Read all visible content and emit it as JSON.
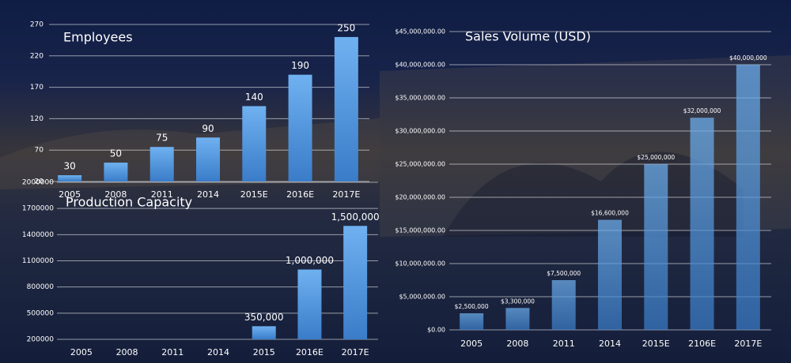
{
  "chart_data": [
    {
      "type": "bar",
      "title": "Employees",
      "categories": [
        "2005",
        "2008",
        "2011",
        "2014",
        "2015E",
        "2016E",
        "2017E"
      ],
      "values": [
        30,
        50,
        75,
        90,
        140,
        190,
        250
      ],
      "ylim": [
        20,
        270
      ],
      "yticks": [
        20,
        70,
        120,
        170,
        220,
        270
      ],
      "grid": true,
      "color": "#4a8fdc"
    },
    {
      "type": "bar",
      "title": "Production Capacity",
      "categories": [
        "2005",
        "2008",
        "2011",
        "2014",
        "2015",
        "2016E",
        "2017E"
      ],
      "values": [
        null,
        null,
        null,
        null,
        350000,
        1000000,
        1500000
      ],
      "value_labels": [
        null,
        null,
        null,
        null,
        "350,000",
        "1,000,000",
        "1,500,000"
      ],
      "ylim": [
        200000,
        2000000
      ],
      "yticks": [
        200000,
        500000,
        800000,
        1100000,
        1400000,
        1700000,
        2000000
      ],
      "grid": true,
      "color": "#4a8fdc"
    },
    {
      "type": "bar",
      "title": "Sales Volume (USD)",
      "categories": [
        "2005",
        "2008",
        "2011",
        "2014",
        "2015E",
        "2106E",
        "2017E"
      ],
      "values": [
        2500000,
        3300000,
        7500000,
        16600000,
        25000000,
        32000000,
        40000000
      ],
      "value_labels": [
        "$2,500,000",
        "$3,300,000",
        "$7,500,000",
        "$16,600,000",
        "$25,000,000",
        "$32,000,000",
        "$40,000,000"
      ],
      "ylim": [
        0,
        45000000
      ],
      "yticks": [
        {
          "value": 0,
          "label": "$0.00"
        },
        {
          "value": 5000000,
          "label": "$5,000,000.00"
        },
        {
          "value": 10000000,
          "label": "$10,000,000.00"
        },
        {
          "value": 15000000,
          "label": "$15,000,000.00"
        },
        {
          "value": 20000000,
          "label": "$20,000,000.00"
        },
        {
          "value": 25000000,
          "label": "$25,000,000.00"
        },
        {
          "value": 30000000,
          "label": "$30,000,000.00"
        },
        {
          "value": 35000000,
          "label": "$35,000,000.00"
        },
        {
          "value": 40000000,
          "label": "$40,000,000.00"
        },
        {
          "value": 45000000,
          "label": "$45,000,000.00"
        }
      ],
      "grid": true,
      "color": "#4a8fdc"
    }
  ]
}
